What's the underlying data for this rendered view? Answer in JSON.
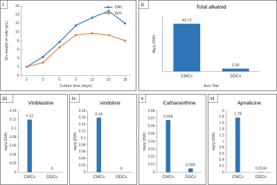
{
  "chart_data": [
    {
      "type": "line",
      "panel": "i",
      "x": [
        0,
        3,
        6,
        9,
        12,
        15,
        18
      ],
      "xlim": [
        -1,
        19
      ],
      "xticks": [
        0,
        3,
        6,
        9,
        12,
        15,
        18
      ],
      "ylim": [
        0,
        16
      ],
      "yticks": [
        0,
        2,
        4,
        6,
        8,
        10,
        12,
        14,
        16
      ],
      "xlabel": "Culture time (days)",
      "ylabel": "Dry weight of cells (g/L)",
      "legend": "upper right",
      "series": [
        {
          "name": "CMC",
          "color": "#2e75b6",
          "values": [
            2,
            4.3,
            7.7,
            11.5,
            13.3,
            14.8,
            12
          ]
        },
        {
          "name": "DDC",
          "color": "#ed7d31",
          "values": [
            2,
            3,
            6.5,
            9.3,
            9.7,
            9.3,
            8
          ]
        }
      ]
    },
    {
      "type": "bar",
      "panel": "ii",
      "title": "Total alkaloid",
      "categories": [
        "CMCs",
        "DDCs"
      ],
      "values": [
        43.72,
        2.59
      ],
      "color": "#2e75b6",
      "ylim": [
        0,
        50
      ],
      "ylabel": "Mg/g (DW)",
      "xlabel": "Axis Title"
    },
    {
      "type": "bar",
      "panel": "iii",
      "title": "Vinblastine",
      "categories": [
        "CMCs",
        "DDCs"
      ],
      "values": [
        0.12,
        0
      ],
      "color": "#2e75b6",
      "ylim": [
        0,
        0.14
      ],
      "yticks": [
        0,
        0.02,
        0.04,
        0.06,
        0.08,
        0.1,
        0.12,
        0.14
      ],
      "ylabel": "mg/g (DW)"
    },
    {
      "type": "bar",
      "panel": "iv",
      "title": "vindoline",
      "categories": [
        "CMCs",
        "DDCs"
      ],
      "values": [
        0.16,
        0
      ],
      "color": "#2e75b6",
      "ylim": [
        0,
        0.18
      ],
      "yticks": [
        0,
        0.02,
        0.04,
        0.06,
        0.08,
        0.1,
        0.12,
        0.14,
        0.16,
        0.18
      ],
      "ylabel": "mg/g (DW)"
    },
    {
      "type": "bar",
      "panel": "v",
      "title": "Catharanthine",
      "categories": [
        "CMCs",
        "DDCs"
      ],
      "values": [
        0.068,
        0.005
      ],
      "color": "#2e75b6",
      "ylim": [
        0,
        0.08
      ],
      "yticks": [
        0,
        0.01,
        0.02,
        0.03,
        0.04,
        0.05,
        0.06,
        0.07,
        0.08
      ],
      "ylabel": "mg/g (DW)"
    },
    {
      "type": "bar",
      "panel": "vi",
      "title": "Ajmalicine",
      "categories": [
        "CMCs",
        "DDCs"
      ],
      "values": [
        1.78,
        0.0134
      ],
      "color": "#2e75b6",
      "ylim": [
        0,
        2
      ],
      "yticks": [
        0,
        0.2,
        0.4,
        0.6,
        0.8,
        1,
        1.2,
        1.4,
        1.6,
        1.8,
        2
      ],
      "ylabel": "mg/g (DW)"
    }
  ]
}
